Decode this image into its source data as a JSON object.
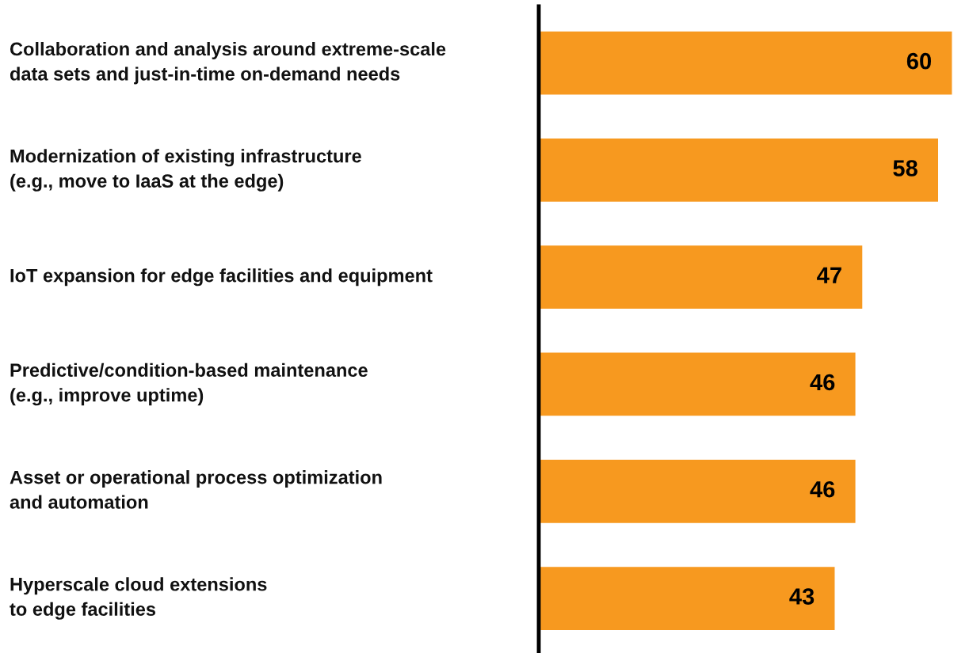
{
  "chart_data": {
    "type": "bar",
    "orientation": "horizontal",
    "categories": [
      "Collaboration and analysis around extreme-scale\ndata sets and just-in-time on-demand needs",
      "Modernization of existing infrastructure\n(e.g., move to IaaS at the edge)",
      "IoT expansion for edge facilities and equipment",
      "Predictive/condition-based maintenance\n(e.g., improve uptime)",
      "Asset or operational process optimization\nand automation",
      "Hyperscale cloud extensions\nto edge facilities"
    ],
    "values": [
      60,
      58,
      47,
      46,
      46,
      43
    ],
    "color": "#f7991f",
    "data_labels": true,
    "legend": false
  }
}
